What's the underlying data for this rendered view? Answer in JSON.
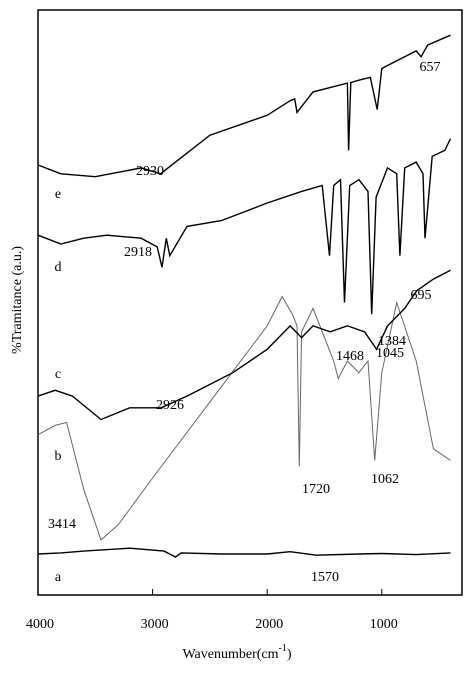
{
  "chart_data": {
    "type": "line",
    "x_label": "Wavenumber(cm",
    "x_label_sup": "-1",
    "x_label_end": ")",
    "y_label": "%Tramitance (a.u.)",
    "xlim": [
      4000,
      300
    ],
    "ylim": [
      0,
      100
    ],
    "xticks": [
      4000,
      3000,
      2000,
      1000
    ],
    "series": [
      {
        "name": "a",
        "color": "#000000",
        "x": [
          4000,
          3800,
          3600,
          3200,
          2900,
          2800,
          2750,
          2400,
          2000,
          1800,
          1570,
          1200,
          1000,
          700,
          400
        ],
        "values": [
          7,
          7.2,
          7.5,
          8,
          7.5,
          6.5,
          7.2,
          7,
          7,
          7.4,
          6.8,
          7,
          7.1,
          6.9,
          7.2
        ]
      },
      {
        "name": "b",
        "color": "#666666",
        "x": [
          4000,
          3850,
          3750,
          3600,
          3450,
          3300,
          3000,
          2500,
          2000,
          1870,
          1780,
          1740,
          1720,
          1700,
          1600,
          1500,
          1420,
          1380,
          1300,
          1200,
          1120,
          1062,
          1000,
          870,
          700,
          550,
          400
        ],
        "values": [
          27.4,
          29,
          29.5,
          18,
          9.4,
          12,
          20,
          33,
          46,
          51,
          48,
          46,
          22,
          45,
          49,
          44,
          40,
          37,
          40,
          38,
          40,
          23,
          38,
          50,
          40,
          25,
          23
        ]
      },
      {
        "name": "c",
        "color": "#000000",
        "x": [
          4000,
          3850,
          3700,
          3450,
          3200,
          2926,
          2700,
          2300,
          2000,
          1800,
          1700,
          1600,
          1450,
          1300,
          1150,
          1045,
          950,
          800,
          695,
          550,
          400
        ],
        "values": [
          34,
          35,
          34,
          30,
          32,
          32,
          34,
          38,
          42,
          46,
          44,
          46,
          45,
          46,
          45,
          42,
          46,
          49,
          52,
          54,
          55.5
        ]
      },
      {
        "name": "d",
        "color": "#000000",
        "x": [
          4000,
          3800,
          3600,
          3400,
          3100,
          2960,
          2918,
          2880,
          2850,
          2700,
          2400,
          2000,
          1700,
          1520,
          1456,
          1420,
          1360,
          1325,
          1280,
          1200,
          1120,
          1088,
          1050,
          950,
          870,
          842,
          800,
          700,
          640,
          623,
          560,
          450,
          400
        ],
        "values": [
          61.5,
          60,
          61,
          61.5,
          61,
          59.5,
          56,
          61,
          58,
          63,
          64,
          67,
          69,
          70,
          58,
          70,
          71,
          50,
          70,
          71,
          69,
          48,
          68,
          73,
          72,
          58,
          73,
          74,
          72,
          61,
          75,
          76,
          78
        ]
      },
      {
        "name": "e",
        "color": "#000000",
        "x": [
          4000,
          3800,
          3500,
          3100,
          2930,
          2800,
          2500,
          2000,
          1800,
          1760,
          1740,
          1600,
          1400,
          1300,
          1290,
          1270,
          1200,
          1100,
          1040,
          1000,
          900,
          700,
          657,
          600,
          400
        ],
        "values": [
          73.5,
          72,
          71.5,
          73,
          72,
          74,
          78.6,
          82,
          84.5,
          84.8,
          82.5,
          86,
          87,
          87.5,
          76,
          87.6,
          88,
          88.5,
          83,
          90,
          91,
          93,
          92,
          94,
          95.7
        ]
      }
    ],
    "annotations": [
      "2930",
      "657",
      "2918",
      "1468",
      "1384",
      "695",
      "1045",
      "2926",
      "1720",
      "1062",
      "3414",
      "1570"
    ]
  }
}
